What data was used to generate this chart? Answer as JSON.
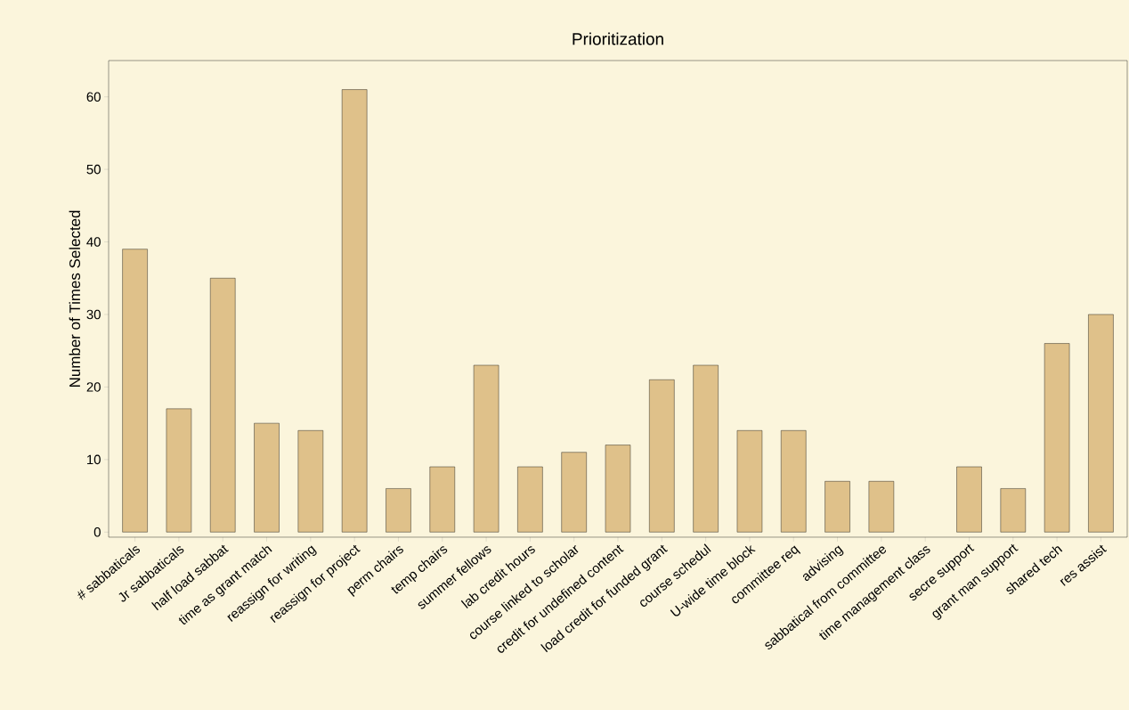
{
  "chart_data": {
    "type": "bar",
    "title": "Prioritization",
    "ylabel": "Number of Times Selected",
    "categories": [
      "# sabbaticals",
      "Jr sabbaticals",
      "half load sabbat",
      "time as grant match",
      "reassign for writing",
      "reassign for project",
      "perm chairs",
      "temp chairs",
      "summer fellows",
      "lab credit hours",
      "course linked to scholar",
      "credit for undefined content",
      "load credit for funded grant",
      "course schedul",
      "U-wide time block",
      "committee req",
      "advising",
      "sabbatical from committee",
      "time management class",
      "secre support",
      "grant man support",
      "shared tech",
      "res assist"
    ],
    "values": [
      39,
      17,
      35,
      15,
      14,
      61,
      6,
      9,
      23,
      9,
      11,
      12,
      21,
      23,
      14,
      14,
      7,
      7,
      0,
      9,
      6,
      26,
      30
    ],
    "color": "#dfc18a",
    "ylim": [
      -0.7,
      65
    ],
    "yticks": [
      0,
      10,
      20,
      30,
      40,
      50,
      60
    ],
    "grid": false
  }
}
